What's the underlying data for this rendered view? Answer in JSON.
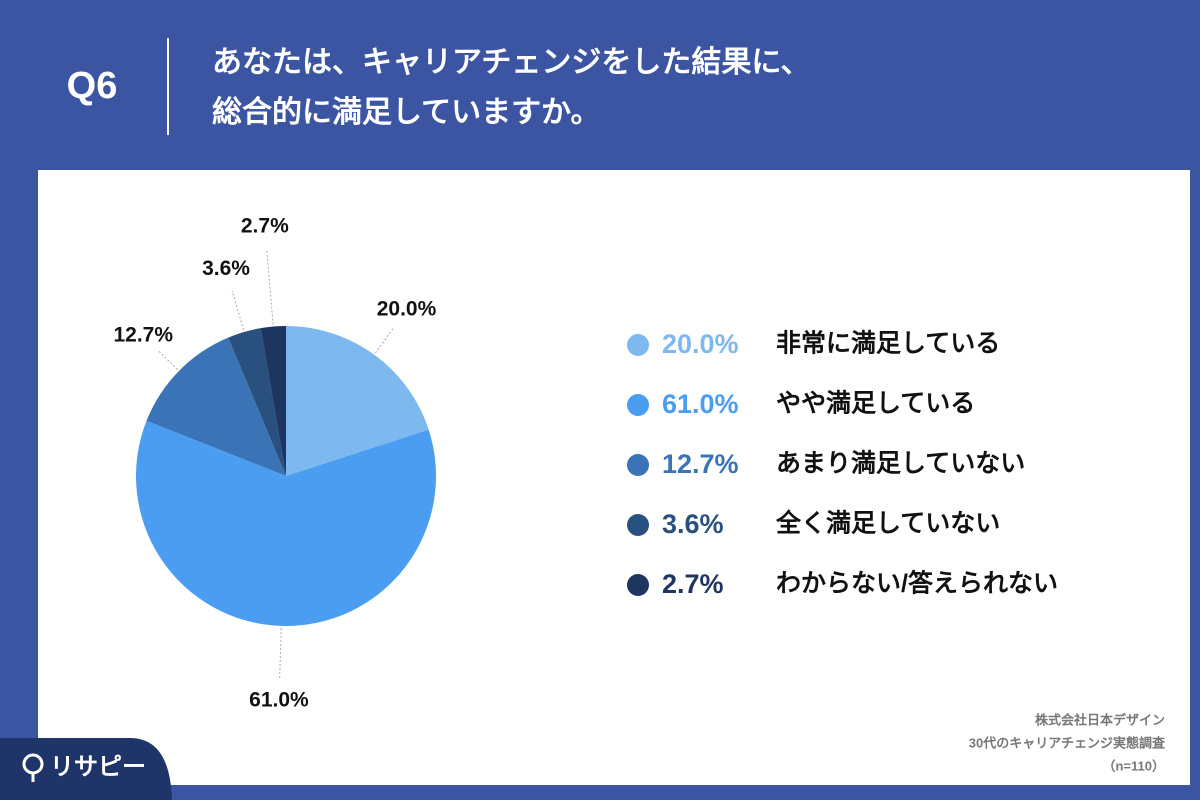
{
  "chart_data": {
    "type": "pie",
    "question": "Q6",
    "title": [
      "あなたは、キャリアチェンジをした結果に、",
      "総合的に満足していますか。"
    ],
    "categories": [
      "非常に満足している",
      "やや満足している",
      "あまり満足していない",
      "全く満足していない",
      "わからない/答えられない"
    ],
    "values": [
      20.0,
      61.0,
      12.7,
      3.6,
      2.7
    ],
    "value_labels": [
      "20.0%",
      "61.0%",
      "12.7%",
      "3.6%",
      "2.7%"
    ],
    "colors": [
      "#7db8ef",
      "#4a9df0",
      "#3a74b6",
      "#29507f",
      "#1d355f"
    ],
    "source": [
      "株式会社日本デザイン",
      "30代のキャリアチェンジ実態調査",
      "（n=110）"
    ],
    "brand": "リサピー"
  }
}
